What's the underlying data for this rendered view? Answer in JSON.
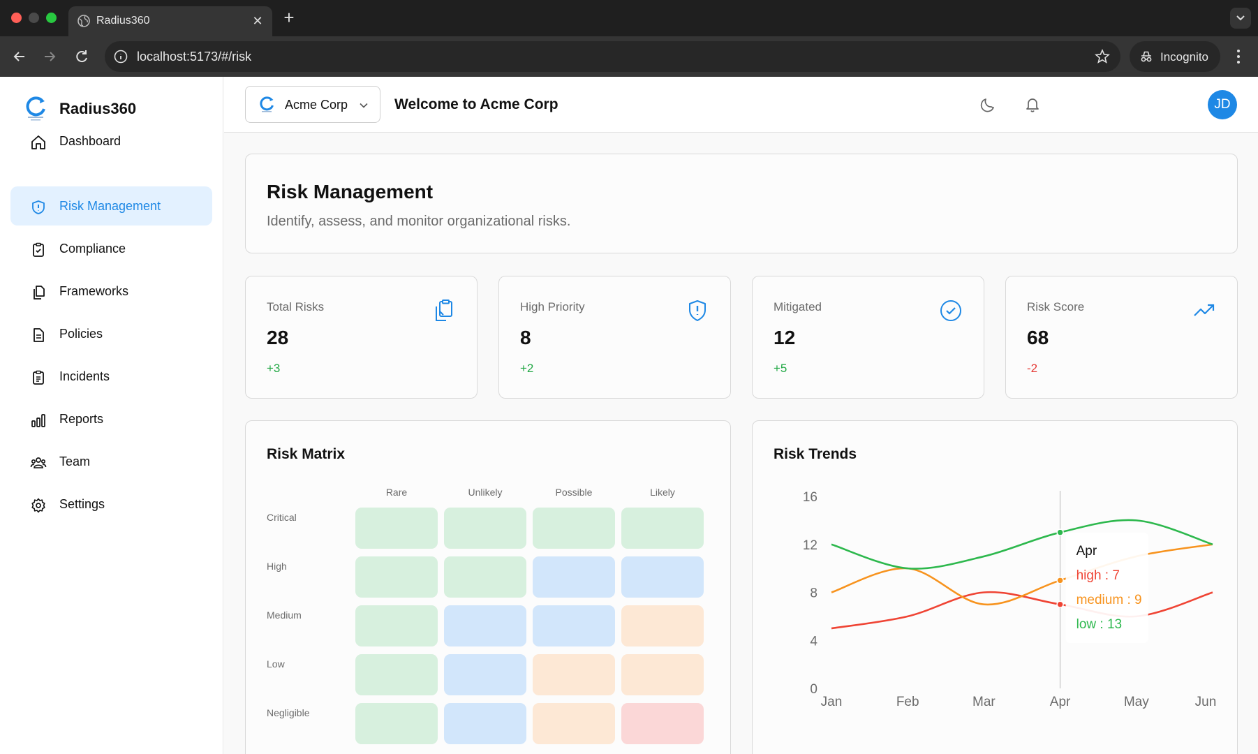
{
  "browser": {
    "tab_title": "Radius360",
    "url": "localhost:5173/#/risk",
    "incognito_label": "Incognito"
  },
  "sidebar": {
    "brand": "Radius360",
    "items": [
      {
        "label": "Dashboard",
        "icon": "home-icon"
      },
      {
        "label": "Risk Management",
        "icon": "shield-alert-icon",
        "active": true
      },
      {
        "label": "Compliance",
        "icon": "clipboard-check-icon"
      },
      {
        "label": "Frameworks",
        "icon": "files-icon"
      },
      {
        "label": "Policies",
        "icon": "document-icon"
      },
      {
        "label": "Incidents",
        "icon": "clipboard-list-icon"
      },
      {
        "label": "Reports",
        "icon": "bar-chart-icon"
      },
      {
        "label": "Team",
        "icon": "users-icon"
      },
      {
        "label": "Settings",
        "icon": "gear-icon"
      }
    ]
  },
  "header": {
    "org_name": "Acme Corp",
    "welcome": "Welcome to Acme Corp",
    "avatar_initials": "JD"
  },
  "page": {
    "title": "Risk Management",
    "subtitle": "Identify, assess, and monitor organizational risks."
  },
  "stats": [
    {
      "label": "Total Risks",
      "value": "28",
      "delta": "+3",
      "delta_color": "#22a845",
      "icon": "clipboard-copy-icon"
    },
    {
      "label": "High Priority",
      "value": "8",
      "delta": "+2",
      "delta_color": "#22a845",
      "icon": "shield-alert-icon"
    },
    {
      "label": "Mitigated",
      "value": "12",
      "delta": "+5",
      "delta_color": "#22a845",
      "icon": "check-circle-icon"
    },
    {
      "label": "Risk Score",
      "value": "68",
      "delta": "-2",
      "delta_color": "#e53935",
      "icon": "trending-up-icon"
    }
  ],
  "colors": {
    "accent": "#1e88e5",
    "positive": "#22a845",
    "negative": "#e53935"
  },
  "matrix": {
    "title": "Risk Matrix",
    "columns": [
      "Rare",
      "Unlikely",
      "Possible",
      "Likely"
    ],
    "rows": [
      "Critical",
      "High",
      "Medium",
      "Low",
      "Negligible"
    ],
    "levels": [
      [
        "low",
        "low",
        "low",
        "low"
      ],
      [
        "low",
        "low",
        "medium",
        "medium"
      ],
      [
        "low",
        "medium",
        "medium",
        "high"
      ],
      [
        "low",
        "medium",
        "high",
        "high"
      ],
      [
        "low",
        "medium",
        "high",
        "critical"
      ]
    ],
    "level_colors": {
      "low": "#d7f0de",
      "medium": "#d2e6fb",
      "high": "#fde8d5",
      "critical": "#fbd7d7"
    }
  },
  "trends": {
    "title": "Risk Trends"
  },
  "chart_data": {
    "type": "line",
    "title": "Risk Trends",
    "x": [
      "Jan",
      "Feb",
      "Mar",
      "Apr",
      "May",
      "Jun"
    ],
    "ylim": [
      0,
      16
    ],
    "yticks": [
      0,
      4,
      8,
      12,
      16
    ],
    "grid": false,
    "series": [
      {
        "name": "high",
        "color": "#ef4434",
        "values": [
          5,
          6,
          8,
          7,
          6,
          8
        ]
      },
      {
        "name": "medium",
        "color": "#f7931e",
        "values": [
          8,
          10,
          7,
          9,
          11,
          12
        ]
      },
      {
        "name": "low",
        "color": "#2db84d",
        "values": [
          12,
          10,
          11,
          13,
          14,
          12
        ]
      }
    ],
    "tooltip": {
      "category": "Apr"
    }
  }
}
